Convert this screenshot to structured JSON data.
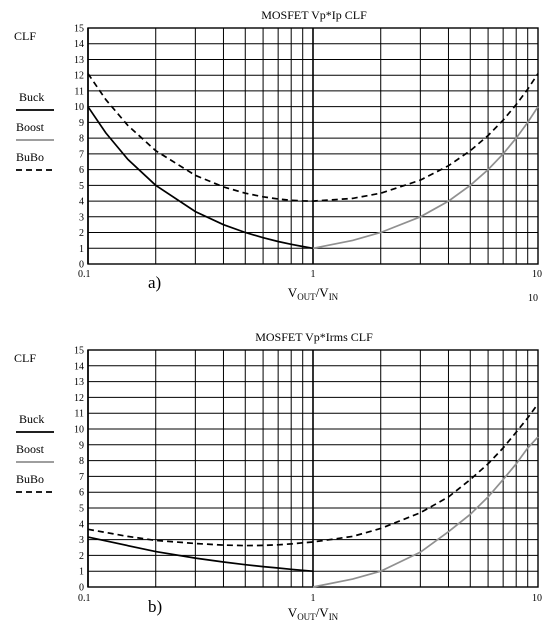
{
  "chart_data": [
    {
      "type": "line",
      "title": "MOSFET Vp*Ip CLF",
      "panel_label": "a)",
      "ylabel": "CLF",
      "xlabel": {
        "base": "V",
        "sub1": "OUT",
        "slash": "/V",
        "sub2": "IN"
      },
      "xscale": "log",
      "xlim": [
        0.1,
        10
      ],
      "ylim": [
        0,
        15
      ],
      "x_tick_labels": [
        "0.1",
        "1",
        "10"
      ],
      "extra_label": "10",
      "y_ticks": [
        0,
        1,
        2,
        3,
        4,
        5,
        6,
        7,
        8,
        9,
        10,
        11,
        12,
        13,
        14,
        15
      ],
      "grid": true,
      "legend_placement": "left",
      "series": [
        {
          "name": "Buck",
          "color": "#000000",
          "dash": "solid",
          "x": [
            0.1,
            0.12,
            0.15,
            0.2,
            0.3,
            0.4,
            0.5,
            0.6,
            0.7,
            0.8,
            0.9,
            1.0
          ],
          "y": [
            10.0,
            8.33,
            6.67,
            5.0,
            3.33,
            2.5,
            2.0,
            1.67,
            1.43,
            1.25,
            1.11,
            1.0
          ]
        },
        {
          "name": "Boost",
          "color": "#909090",
          "dash": "solid",
          "x": [
            1.0,
            1.5,
            2,
            3,
            4,
            5,
            6,
            7,
            8,
            9,
            10
          ],
          "y": [
            1.0,
            1.5,
            2.0,
            3.0,
            4.0,
            5.0,
            6.0,
            7.0,
            8.0,
            9.0,
            10.0
          ]
        },
        {
          "name": "BuBo",
          "color": "#000000",
          "dash": "dashed",
          "x": [
            0.1,
            0.12,
            0.15,
            0.2,
            0.3,
            0.4,
            0.5,
            0.6,
            0.7,
            0.8,
            0.9,
            1.0,
            1.5,
            2,
            3,
            4,
            5,
            6,
            7,
            8,
            9,
            10
          ],
          "y": [
            12.1,
            10.45,
            8.82,
            7.2,
            5.63,
            4.9,
            4.5,
            4.27,
            4.13,
            4.05,
            4.01,
            4.0,
            4.17,
            4.5,
            5.33,
            6.25,
            7.2,
            8.17,
            9.14,
            10.13,
            11.11,
            12.1
          ]
        }
      ]
    },
    {
      "type": "line",
      "title": "MOSFET Vp*Irms CLF",
      "panel_label": "b)",
      "ylabel": "CLF",
      "xlabel": {
        "base": "V",
        "sub1": "OUT",
        "slash": "/V",
        "sub2": "IN"
      },
      "xscale": "log",
      "xlim": [
        0.1,
        10
      ],
      "ylim": [
        0,
        15
      ],
      "x_tick_labels": [
        "0.1",
        "1",
        "10"
      ],
      "y_ticks": [
        0,
        1,
        2,
        3,
        4,
        5,
        6,
        7,
        8,
        9,
        10,
        11,
        12,
        13,
        14,
        15
      ],
      "grid": true,
      "legend_placement": "left",
      "series": [
        {
          "name": "Buck",
          "color": "#000000",
          "dash": "solid",
          "x": [
            0.1,
            0.2,
            0.3,
            0.4,
            0.5,
            0.6,
            0.7,
            0.8,
            0.9,
            1.0
          ],
          "y": [
            3.16,
            2.24,
            1.83,
            1.58,
            1.41,
            1.29,
            1.2,
            1.12,
            1.05,
            1.0
          ]
        },
        {
          "name": "Boost",
          "color": "#909090",
          "dash": "solid",
          "x": [
            1.0,
            1.5,
            2,
            3,
            4,
            5,
            6,
            7,
            8,
            9,
            10
          ],
          "y": [
            0.0,
            0.5,
            1.0,
            2.2,
            3.5,
            4.6,
            5.7,
            6.8,
            7.8,
            8.8,
            9.5
          ]
        },
        {
          "name": "BuBo",
          "color": "#000000",
          "dash": "dashed",
          "x": [
            0.1,
            0.15,
            0.2,
            0.3,
            0.4,
            0.5,
            0.6,
            0.7,
            0.8,
            0.9,
            1.0,
            1.5,
            2,
            3,
            4,
            5,
            6,
            7,
            8,
            9,
            10
          ],
          "y": [
            3.65,
            3.2,
            2.95,
            2.75,
            2.65,
            2.62,
            2.63,
            2.67,
            2.73,
            2.8,
            2.85,
            3.2,
            3.7,
            4.7,
            5.7,
            6.8,
            7.8,
            8.8,
            9.8,
            10.7,
            11.6
          ]
        }
      ]
    }
  ]
}
